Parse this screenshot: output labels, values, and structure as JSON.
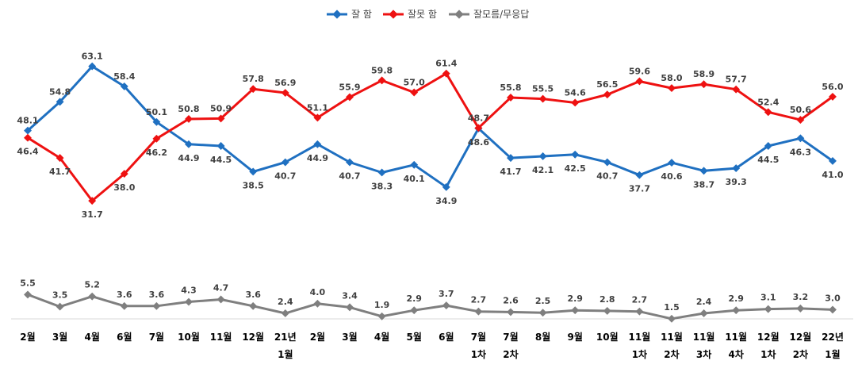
{
  "chart_data": {
    "type": "line",
    "categories": [
      [
        "2월"
      ],
      [
        "3월"
      ],
      [
        "4월"
      ],
      [
        "6월"
      ],
      [
        "7월"
      ],
      [
        "10월"
      ],
      [
        "11월"
      ],
      [
        "12월"
      ],
      [
        "21년",
        "1월"
      ],
      [
        "2월"
      ],
      [
        "3월"
      ],
      [
        "4월"
      ],
      [
        "5월"
      ],
      [
        "6월"
      ],
      [
        "7월",
        "1차"
      ],
      [
        "7월",
        "2차"
      ],
      [
        "8월"
      ],
      [
        "9월"
      ],
      [
        "10월"
      ],
      [
        "11월",
        "1차"
      ],
      [
        "11월",
        "2차"
      ],
      [
        "11월",
        "3차"
      ],
      [
        "11월",
        "4차"
      ],
      [
        "12월",
        "1차"
      ],
      [
        "12월",
        "2차"
      ],
      [
        "22년",
        "1월"
      ]
    ],
    "series": [
      {
        "name": "잘 함",
        "color": "#1f70c1",
        "values": [
          48.1,
          54.8,
          63.1,
          58.4,
          50.1,
          44.9,
          44.5,
          38.5,
          40.7,
          44.9,
          40.7,
          38.3,
          40.1,
          34.9,
          48.6,
          41.7,
          42.1,
          42.5,
          40.7,
          37.7,
          40.6,
          38.7,
          39.3,
          44.5,
          46.3,
          41.0
        ]
      },
      {
        "name": "잘못 함",
        "color": "#ee1111",
        "values": [
          46.4,
          41.7,
          31.7,
          38.0,
          46.2,
          50.8,
          50.9,
          57.8,
          56.9,
          51.1,
          55.9,
          59.8,
          57.0,
          61.4,
          48.7,
          55.8,
          55.5,
          54.6,
          56.5,
          59.6,
          58.0,
          58.9,
          57.7,
          52.4,
          50.6,
          56.0
        ]
      },
      {
        "name": "잘모름/무응답",
        "color": "#7f7f7f",
        "values": [
          5.5,
          3.5,
          5.2,
          3.6,
          3.6,
          4.3,
          4.7,
          3.6,
          2.4,
          4.0,
          3.4,
          1.9,
          2.9,
          3.7,
          2.7,
          2.6,
          2.5,
          2.9,
          2.8,
          2.7,
          1.5,
          2.4,
          2.9,
          3.1,
          3.2,
          3.0
        ]
      }
    ],
    "legend_position": "top-center",
    "grid": false
  }
}
